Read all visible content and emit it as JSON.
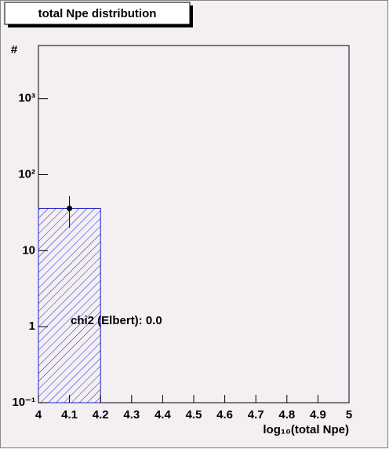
{
  "chart_data": {
    "type": "histogram",
    "title": "total Npe distribution",
    "y_label": "#",
    "x_label": "log₁₀(total Npe)",
    "annotation": "chi2 (Elbert): 0.0",
    "bins": [
      4,
      4.2,
      4.4,
      4.6,
      4.8,
      5
    ],
    "values": [
      36,
      0,
      0,
      0,
      0
    ],
    "color": "#2020c0",
    "points": {
      "x": [
        4.1
      ],
      "values": [
        36
      ],
      "errors": [
        16
      ]
    },
    "log_y": true,
    "xlim": [
      4,
      5
    ],
    "xticks": [
      4,
      4.1,
      4.2,
      4.3,
      4.4,
      4.5,
      4.6,
      4.7,
      4.8,
      4.9,
      5
    ],
    "ylim": [
      0.1,
      5000
    ],
    "yticks": [
      {
        "value": 0.1,
        "label": "10⁻¹"
      },
      1,
      10,
      {
        "value": 100,
        "label": "10²"
      },
      {
        "value": 1000,
        "label": "10³"
      }
    ]
  }
}
